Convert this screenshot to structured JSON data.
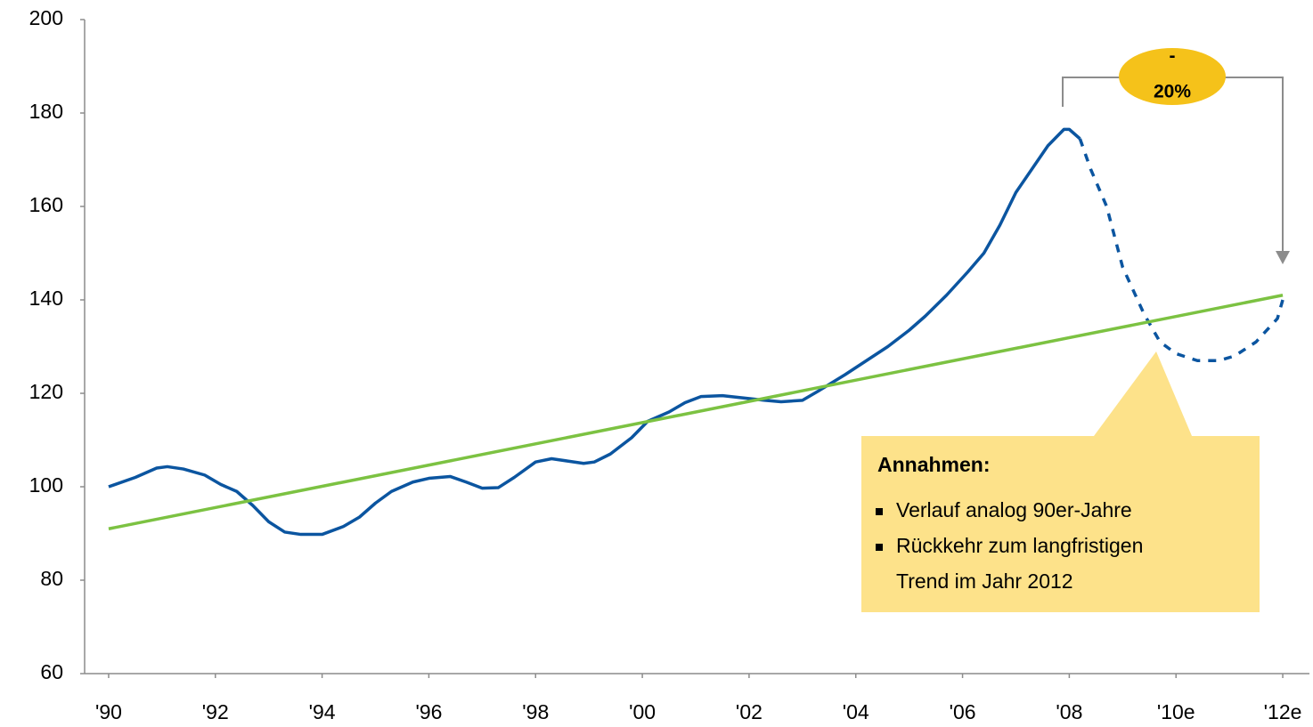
{
  "chart_data": {
    "type": "line",
    "xlim": [
      1989.55,
      2012.5
    ],
    "ylim": [
      60,
      200
    ],
    "yticks": [
      60,
      80,
      100,
      120,
      140,
      160,
      180,
      200
    ],
    "xticks": [
      {
        "value": 1990,
        "label": "'90"
      },
      {
        "value": 1992,
        "label": "'92"
      },
      {
        "value": 1994,
        "label": "'94"
      },
      {
        "value": 1996,
        "label": "'96"
      },
      {
        "value": 1998,
        "label": "'98"
      },
      {
        "value": 2000,
        "label": "'00"
      },
      {
        "value": 2002,
        "label": "'02"
      },
      {
        "value": 2004,
        "label": "'04"
      },
      {
        "value": 2006,
        "label": "'06"
      },
      {
        "value": 2008,
        "label": "'08"
      },
      {
        "value": 2010,
        "label": "'10e"
      },
      {
        "value": 2012,
        "label": "'12e"
      }
    ],
    "series": [
      {
        "color": "#0b55a0",
        "dashed": false,
        "x": [
          1990.0,
          1990.5,
          1990.9,
          1991.1,
          1991.4,
          1991.8,
          1992.1,
          1992.4,
          1992.7,
          1993.0,
          1993.3,
          1993.6,
          1994.0,
          1994.4,
          1994.7,
          1995.0,
          1995.3,
          1995.7,
          1996.0,
          1996.4,
          1996.7,
          1997.0,
          1997.3,
          1997.6,
          1998.0,
          1998.3,
          1998.6,
          1998.9,
          1999.1,
          1999.4,
          1999.8,
          2000.1,
          2000.5,
          2000.8,
          2001.1,
          2001.5,
          2001.9,
          2002.3,
          2002.6,
          2003.0,
          2003.3,
          2003.8,
          2004.2,
          2004.6,
          2005.0,
          2005.3,
          2005.7,
          2006.1,
          2006.4,
          2006.7,
          2007.0,
          2007.3,
          2007.6,
          2007.9,
          2008.0,
          2008.2
        ],
        "values": [
          100,
          102,
          104,
          104.3,
          103.8,
          102.5,
          100.5,
          99,
          96,
          92.5,
          90.3,
          89.8,
          89.8,
          91.5,
          93.5,
          96.5,
          99,
          101,
          101.8,
          102.2,
          101,
          99.7,
          99.8,
          102,
          105.3,
          106,
          105.5,
          105,
          105.3,
          107,
          110.5,
          114,
          116,
          118,
          119.3,
          119.5,
          119,
          118.5,
          118.2,
          118.5,
          120.5,
          124,
          127,
          130,
          133.5,
          136.5,
          141,
          146,
          150,
          156,
          163,
          168,
          173,
          176.5,
          176.5,
          174.5
        ]
      },
      {
        "color": "#0b55a0",
        "dashed": true,
        "x": [
          2008.2,
          2008.4,
          2008.7,
          2009.0,
          2009.4,
          2009.7,
          2010.0,
          2010.4,
          2010.8,
          2011.1,
          2011.5,
          2011.9,
          2012.0
        ],
        "values": [
          174.5,
          168,
          160,
          147,
          137,
          131,
          128.5,
          127,
          127,
          128,
          131,
          136,
          140
        ]
      },
      {
        "color": "#7cc242",
        "dashed": false,
        "x": [
          1990,
          2012
        ],
        "values": [
          91,
          141
        ]
      }
    ],
    "annotations": {
      "change": [
        "-",
        "20%"
      ],
      "box_title": "Annahmen:",
      "bullets": [
        [
          "Verlauf analog 90er-Jahre"
        ],
        [
          "Rückkehr zum langfristigen",
          "Trend im Jahr 2012"
        ]
      ]
    }
  }
}
